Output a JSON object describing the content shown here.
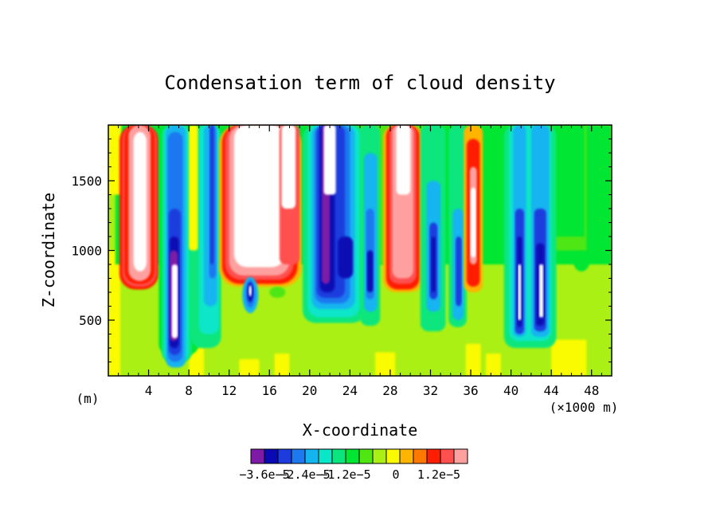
{
  "chart_data": {
    "type": "heatmap",
    "title": "Condensation term of cloud density",
    "xlabel": "X-coordinate",
    "ylabel": "Z-coordinate",
    "x_unit": "(×1000 m)",
    "y_unit": "(m)",
    "xlim": [
      0,
      50
    ],
    "ylim": [
      100,
      1900
    ],
    "x_ticks": [
      "4",
      "8",
      "12",
      "16",
      "20",
      "24",
      "28",
      "32",
      "36",
      "40",
      "44",
      "48"
    ],
    "x_tick_values": [
      4,
      8,
      12,
      16,
      20,
      24,
      28,
      32,
      36,
      40,
      44,
      48
    ],
    "y_ticks": [
      "500",
      "1000",
      "1500"
    ],
    "y_tick_values": [
      500,
      1000,
      1500
    ],
    "colorbar": {
      "colors": [
        "#7d1ba6",
        "#0a0ab4",
        "#1e3cde",
        "#1e78f0",
        "#14b4f0",
        "#0ae6c8",
        "#0ae67d",
        "#00e632",
        "#50e614",
        "#aaf014",
        "#fafa00",
        "#ffb400",
        "#ff7800",
        "#ff1e00",
        "#ff5050",
        "#ffa0a0"
      ],
      "labels": [
        "−3.6e−5",
        "−2.4e−5",
        "−1.2e−5",
        "0",
        "1.2e−5"
      ]
    },
    "field_notes": "Cloud updraft cores (white, > max level) at x≈2-4, 12-18, 21-22, 28-30, 36 and 40-43 (×1000 m) with red/orange condensation rims; blue/purple evaporation bands beside them; background weakly positive (yellow-green)."
  }
}
